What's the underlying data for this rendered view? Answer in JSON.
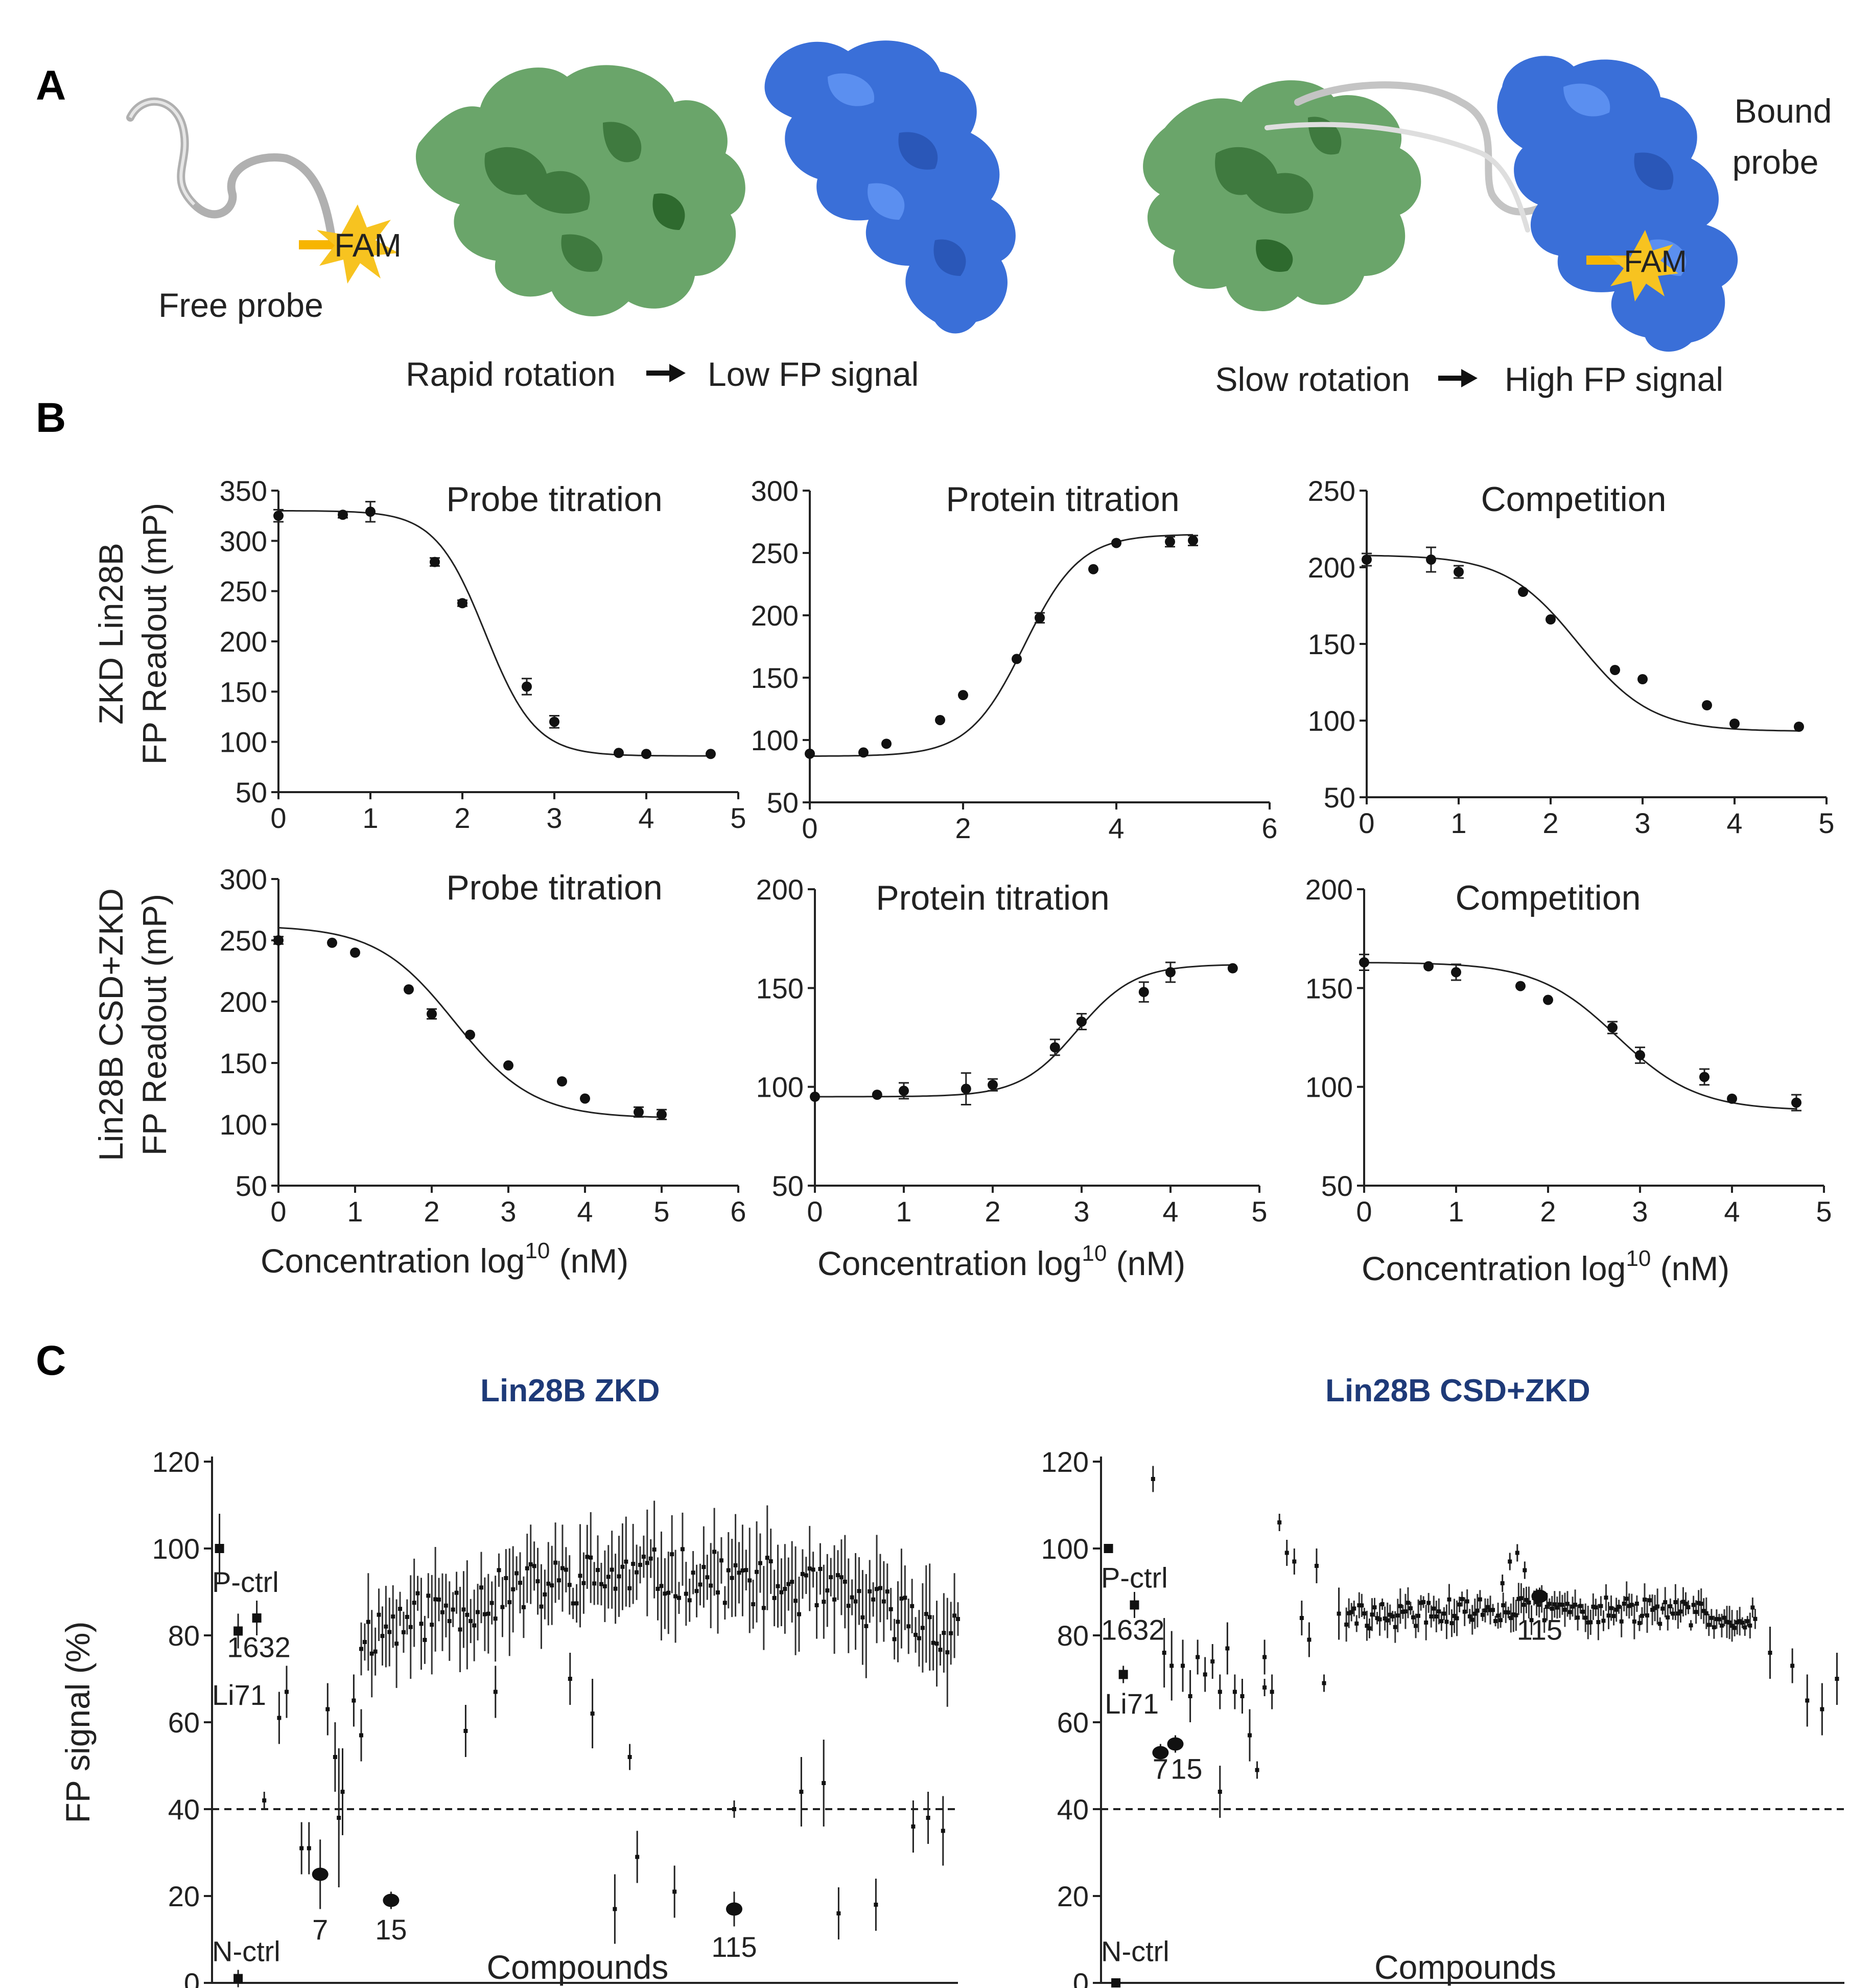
{
  "panel_a": {
    "label": "A",
    "free_probe_label": "Free probe",
    "fam_label": "FAM",
    "bound_probe_line1": "Bound",
    "bound_probe_line2": "probe",
    "left_caption_a": "Rapid rotation",
    "left_caption_b": "Low FP signal",
    "right_caption_a": "Slow rotation",
    "right_caption_b": "High FP signal",
    "colors": {
      "green_protein": "#5a9a5a",
      "blue_protein": "#3a6fd8",
      "fam": "#f7b500",
      "probe": "#bbbbbb"
    }
  },
  "panel_b": {
    "label": "B",
    "row1_ylabel_line1": "ZKD Lin28B",
    "row1_ylabel_line2": "FP Readout (mP)",
    "row2_ylabel_line1": "Lin28B CSD+ZKD",
    "row2_ylabel_line2": "FP Readout (mP)",
    "xlabel_main": "Concentration log",
    "xlabel_sup": "10",
    "xlabel_unit": " (nM)"
  },
  "chart_data": [
    {
      "type": "scatter",
      "title": "Probe titration",
      "panel": "B",
      "row": 1,
      "col": 1,
      "xlim": [
        0,
        5
      ],
      "xticks": [
        0,
        1,
        2,
        3,
        4,
        5
      ],
      "ylim": [
        50,
        350
      ],
      "yticks": [
        50,
        100,
        150,
        200,
        250,
        300,
        350
      ],
      "curve": {
        "top": 330,
        "bottom": 86,
        "x50": 2.25,
        "hill": -1.6
      },
      "points": [
        [
          0,
          325,
          6
        ],
        [
          0.7,
          326,
          3
        ],
        [
          1,
          329,
          10
        ],
        [
          1.7,
          279,
          4
        ],
        [
          2,
          238,
          3
        ],
        [
          2.7,
          155,
          8
        ],
        [
          3,
          120,
          6
        ],
        [
          3.7,
          89,
          2
        ],
        [
          4,
          88,
          2
        ],
        [
          4.7,
          88,
          2
        ]
      ]
    },
    {
      "type": "scatter",
      "title": "Protein titration",
      "panel": "B",
      "row": 1,
      "col": 2,
      "xlim": [
        0,
        6
      ],
      "xticks": [
        0,
        2,
        4,
        6
      ],
      "ylim": [
        50,
        300
      ],
      "yticks": [
        50,
        100,
        150,
        200,
        250,
        300
      ],
      "curve": {
        "top": 265,
        "bottom": 87,
        "x50": 2.8,
        "hill": 1.2
      },
      "points": [
        [
          0,
          89,
          2
        ],
        [
          0.7,
          90,
          2
        ],
        [
          1,
          97,
          2
        ],
        [
          1.7,
          116,
          2
        ],
        [
          2,
          136,
          2
        ],
        [
          2.7,
          165,
          2
        ],
        [
          3,
          198,
          4
        ],
        [
          3.7,
          237,
          2
        ],
        [
          4,
          258,
          2
        ],
        [
          4.7,
          259,
          4
        ],
        [
          5,
          260,
          4
        ]
      ]
    },
    {
      "type": "scatter",
      "title": "Competition",
      "panel": "B",
      "row": 1,
      "col": 3,
      "xlim": [
        0,
        5
      ],
      "xticks": [
        0,
        1,
        2,
        3,
        4,
        5
      ],
      "ylim": [
        50,
        250
      ],
      "yticks": [
        50,
        100,
        150,
        200,
        250
      ],
      "curve": {
        "top": 208,
        "bottom": 93,
        "x50": 2.3,
        "hill": -1.1
      },
      "points": [
        [
          0,
          205,
          4
        ],
        [
          0.7,
          205,
          8
        ],
        [
          1,
          197,
          4
        ],
        [
          1.7,
          184,
          2
        ],
        [
          2,
          166,
          2
        ],
        [
          2.7,
          133,
          2
        ],
        [
          3,
          127,
          2
        ],
        [
          3.7,
          110,
          2
        ],
        [
          4,
          98,
          2
        ],
        [
          4.7,
          96,
          2
        ]
      ]
    },
    {
      "type": "scatter",
      "title": "Probe titration",
      "panel": "B",
      "row": 2,
      "col": 1,
      "xlim": [
        0,
        6
      ],
      "xticks": [
        0,
        1,
        2,
        3,
        4,
        5,
        6
      ],
      "ylim": [
        50,
        300
      ],
      "yticks": [
        50,
        100,
        150,
        200,
        250,
        300
      ],
      "curve": {
        "top": 262,
        "bottom": 105,
        "x50": 2.3,
        "hill": -0.85
      },
      "points": [
        [
          0,
          250,
          3
        ],
        [
          0.7,
          248,
          2
        ],
        [
          1,
          240,
          2
        ],
        [
          1.7,
          210,
          2
        ],
        [
          2,
          190,
          4
        ],
        [
          2.5,
          173,
          2
        ],
        [
          3,
          148,
          2
        ],
        [
          3.7,
          135,
          2
        ],
        [
          4,
          121,
          2
        ],
        [
          4.7,
          110,
          4
        ],
        [
          5,
          108,
          4
        ]
      ]
    },
    {
      "type": "scatter",
      "title": "Protein titration",
      "panel": "B",
      "row": 2,
      "col": 2,
      "xlim": [
        0,
        5
      ],
      "xticks": [
        0,
        1,
        2,
        3,
        4,
        5
      ],
      "ylim": [
        50,
        200
      ],
      "yticks": [
        50,
        100,
        150,
        200
      ],
      "curve": {
        "top": 162,
        "bottom": 95,
        "x50": 2.95,
        "hill": 1.35
      },
      "points": [
        [
          0,
          95,
          2
        ],
        [
          0.7,
          96,
          2
        ],
        [
          1,
          98,
          4
        ],
        [
          1.7,
          99,
          8
        ],
        [
          2,
          101,
          3
        ],
        [
          2.7,
          120,
          4
        ],
        [
          3,
          133,
          4
        ],
        [
          3.7,
          148,
          5
        ],
        [
          4,
          158,
          5
        ],
        [
          4.7,
          160,
          2
        ]
      ]
    },
    {
      "type": "scatter",
      "title": "Competition",
      "panel": "B",
      "row": 2,
      "col": 3,
      "xlim": [
        0,
        5
      ],
      "xticks": [
        0,
        1,
        2,
        3,
        4,
        5
      ],
      "ylim": [
        50,
        200
      ],
      "yticks": [
        50,
        100,
        150,
        200
      ],
      "curve": {
        "top": 163,
        "bottom": 88,
        "x50": 2.75,
        "hill": -1.0
      },
      "points": [
        [
          0,
          163,
          4
        ],
        [
          0.7,
          161,
          2
        ],
        [
          1,
          158,
          4
        ],
        [
          1.7,
          151,
          2
        ],
        [
          2,
          144,
          2
        ],
        [
          2.7,
          130,
          3
        ],
        [
          3,
          116,
          4
        ],
        [
          3.7,
          105,
          4
        ],
        [
          4,
          94,
          2
        ],
        [
          4.7,
          92,
          4
        ]
      ]
    },
    {
      "type": "scatter",
      "title": "Lin28B ZKD",
      "panel": "C",
      "side": "left",
      "ylabel": "FP signal (%)",
      "xlabel": "Compounds",
      "ylim": [
        0,
        120
      ],
      "yticks": [
        0,
        20,
        40,
        60,
        80,
        100,
        120
      ],
      "threshold": 40,
      "seed": 11,
      "n_bulk": 170,
      "bulk_low": 80,
      "bulk_high": 94,
      "bulk_noise": 6,
      "bulk_err": 9,
      "bulk_start": 0.2,
      "bulk_end": 1.0,
      "points": [
        [
          0.01,
          100,
          8,
          "ctrl"
        ],
        [
          0.035,
          81,
          4,
          "ctrl"
        ],
        [
          0.06,
          84,
          4,
          "ctrl"
        ],
        [
          0.035,
          1,
          2,
          "ctrl"
        ],
        [
          0.07,
          42,
          2,
          "s"
        ],
        [
          0.09,
          61,
          6,
          "s"
        ],
        [
          0.1,
          67,
          6,
          "s"
        ],
        [
          0.12,
          31,
          6,
          "s"
        ],
        [
          0.13,
          31,
          6,
          "s"
        ],
        [
          0.145,
          25,
          8,
          "hit"
        ],
        [
          0.155,
          63,
          6,
          "s"
        ],
        [
          0.165,
          52,
          8,
          "s"
        ],
        [
          0.17,
          38,
          16,
          "s"
        ],
        [
          0.175,
          44,
          10,
          "s"
        ],
        [
          0.19,
          65,
          6,
          "s"
        ],
        [
          0.2,
          57,
          6,
          "s"
        ],
        [
          0.24,
          19,
          2,
          "hit"
        ],
        [
          0.34,
          58,
          6,
          "s"
        ],
        [
          0.54,
          17,
          8,
          "s"
        ],
        [
          0.57,
          29,
          6,
          "s"
        ],
        [
          0.62,
          21,
          6,
          "s"
        ],
        [
          0.7,
          40,
          2,
          "s"
        ],
        [
          0.7,
          17,
          4,
          "hit"
        ],
        [
          0.79,
          44,
          8,
          "s"
        ],
        [
          0.82,
          46,
          10,
          "s"
        ],
        [
          0.84,
          16,
          6,
          "s"
        ],
        [
          0.89,
          18,
          6,
          "s"
        ],
        [
          0.94,
          36,
          6,
          "s"
        ],
        [
          0.96,
          38,
          6,
          "s"
        ],
        [
          0.98,
          35,
          8,
          "s"
        ],
        [
          0.38,
          67,
          6,
          "s"
        ],
        [
          0.56,
          52,
          3,
          "s"
        ],
        [
          0.48,
          70,
          6,
          "s"
        ],
        [
          0.51,
          62,
          8,
          "s"
        ]
      ],
      "labels": [
        {
          "text": "P-ctrl",
          "x": 0.0,
          "y": 90,
          "anchor": "start"
        },
        {
          "text": "1632",
          "x": 0.02,
          "y": 75,
          "anchor": "start"
        },
        {
          "text": "Li71",
          "x": 0.0,
          "y": 64,
          "anchor": "start"
        },
        {
          "text": "7",
          "x": 0.145,
          "y": 10,
          "anchor": "middle"
        },
        {
          "text": "15",
          "x": 0.24,
          "y": 10,
          "anchor": "middle"
        },
        {
          "text": "115",
          "x": 0.7,
          "y": 6,
          "anchor": "middle"
        },
        {
          "text": "N-ctrl",
          "x": 0.0,
          "y": 5,
          "anchor": "start"
        }
      ]
    },
    {
      "type": "scatter",
      "title": "Lin28B CSD+ZKD",
      "panel": "C",
      "side": "right",
      "ylabel": "",
      "xlabel": "Compounds",
      "ylim": [
        0,
        120
      ],
      "yticks": [
        0,
        20,
        40,
        60,
        80,
        100,
        120
      ],
      "threshold": 40,
      "seed": 29,
      "n_bulk": 160,
      "bulk_low": 84,
      "bulk_high": 86,
      "bulk_noise": 3,
      "bulk_err": 3,
      "bulk_start": 0.33,
      "bulk_end": 0.88,
      "points": [
        [
          0.01,
          100,
          1,
          "ctrl"
        ],
        [
          0.045,
          87,
          3,
          "ctrl"
        ],
        [
          0.03,
          71,
          2,
          "ctrl"
        ],
        [
          0.02,
          0,
          1,
          "ctrl"
        ],
        [
          0.07,
          116,
          3,
          "s"
        ],
        [
          0.08,
          53,
          2,
          "hit"
        ],
        [
          0.1,
          55,
          2,
          "hit"
        ],
        [
          0.085,
          76,
          8,
          "s"
        ],
        [
          0.095,
          73,
          8,
          "s"
        ],
        [
          0.11,
          73,
          6,
          "s"
        ],
        [
          0.12,
          66,
          6,
          "s"
        ],
        [
          0.13,
          75,
          4,
          "s"
        ],
        [
          0.14,
          71,
          4,
          "s"
        ],
        [
          0.15,
          74,
          4,
          "s"
        ],
        [
          0.16,
          67,
          4,
          "s"
        ],
        [
          0.17,
          77,
          6,
          "s"
        ],
        [
          0.18,
          67,
          4,
          "s"
        ],
        [
          0.19,
          66,
          4,
          "s"
        ],
        [
          0.2,
          57,
          6,
          "s"
        ],
        [
          0.21,
          49,
          2,
          "s"
        ],
        [
          0.22,
          75,
          4,
          "s"
        ],
        [
          0.23,
          67,
          4,
          "s"
        ],
        [
          0.16,
          44,
          6,
          "s"
        ],
        [
          0.24,
          106,
          2,
          "s"
        ],
        [
          0.25,
          99,
          3,
          "s"
        ],
        [
          0.26,
          97,
          3,
          "s"
        ],
        [
          0.27,
          84,
          4,
          "s"
        ],
        [
          0.29,
          96,
          4,
          "s"
        ],
        [
          0.28,
          79,
          4,
          "s"
        ],
        [
          0.3,
          69,
          2,
          "s"
        ],
        [
          0.32,
          85,
          6,
          "s"
        ],
        [
          0.22,
          68,
          2,
          "s"
        ],
        [
          0.55,
          97,
          2,
          "s"
        ],
        [
          0.56,
          99,
          2,
          "s"
        ],
        [
          0.57,
          95,
          2,
          "s"
        ],
        [
          0.54,
          92,
          2,
          "s"
        ],
        [
          0.59,
          89,
          2,
          "hit"
        ],
        [
          0.9,
          76,
          6,
          "s"
        ],
        [
          0.93,
          73,
          4,
          "s"
        ],
        [
          0.95,
          65,
          6,
          "s"
        ],
        [
          0.97,
          63,
          6,
          "s"
        ],
        [
          0.99,
          70,
          6,
          "s"
        ]
      ],
      "labels": [
        {
          "text": "P-ctrl",
          "x": 0.0,
          "y": 91,
          "anchor": "start"
        },
        {
          "text": "1632",
          "x": 0.0,
          "y": 79,
          "anchor": "start"
        },
        {
          "text": "Li71",
          "x": 0.005,
          "y": 62,
          "anchor": "start"
        },
        {
          "text": "7",
          "x": 0.08,
          "y": 47,
          "anchor": "middle"
        },
        {
          "text": "15",
          "x": 0.115,
          "y": 47,
          "anchor": "middle"
        },
        {
          "text": "115",
          "x": 0.59,
          "y": 79,
          "anchor": "middle"
        },
        {
          "text": "N-ctrl",
          "x": 0.0,
          "y": 5,
          "anchor": "start"
        }
      ]
    }
  ],
  "panel_c": {
    "label": "C"
  }
}
